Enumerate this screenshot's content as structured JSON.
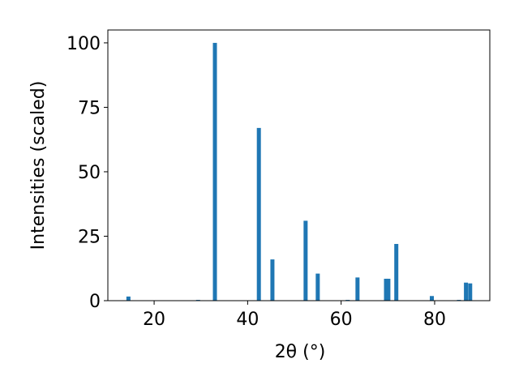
{
  "chart_data": {
    "type": "bar",
    "xlabel": "2θ (°)",
    "ylabel": "Intensities (scaled)",
    "x": [
      14.5,
      29.4,
      33.0,
      42.4,
      45.3,
      52.4,
      55.0,
      61.4,
      63.5,
      69.6,
      70.1,
      71.8,
      79.4,
      85.2,
      86.7,
      87.6
    ],
    "values": [
      1.6,
      0.3,
      100,
      67,
      16,
      31,
      10.5,
      0.3,
      9,
      8.5,
      8.5,
      22,
      1.8,
      0.3,
      7,
      6.7
    ],
    "color": "#1f77b4",
    "xlim": [
      10.1,
      91.8
    ],
    "xticks": [
      20,
      40,
      60,
      80
    ],
    "ylim": [
      0,
      105
    ],
    "yticks": [
      0,
      25,
      50,
      75,
      100
    ]
  }
}
